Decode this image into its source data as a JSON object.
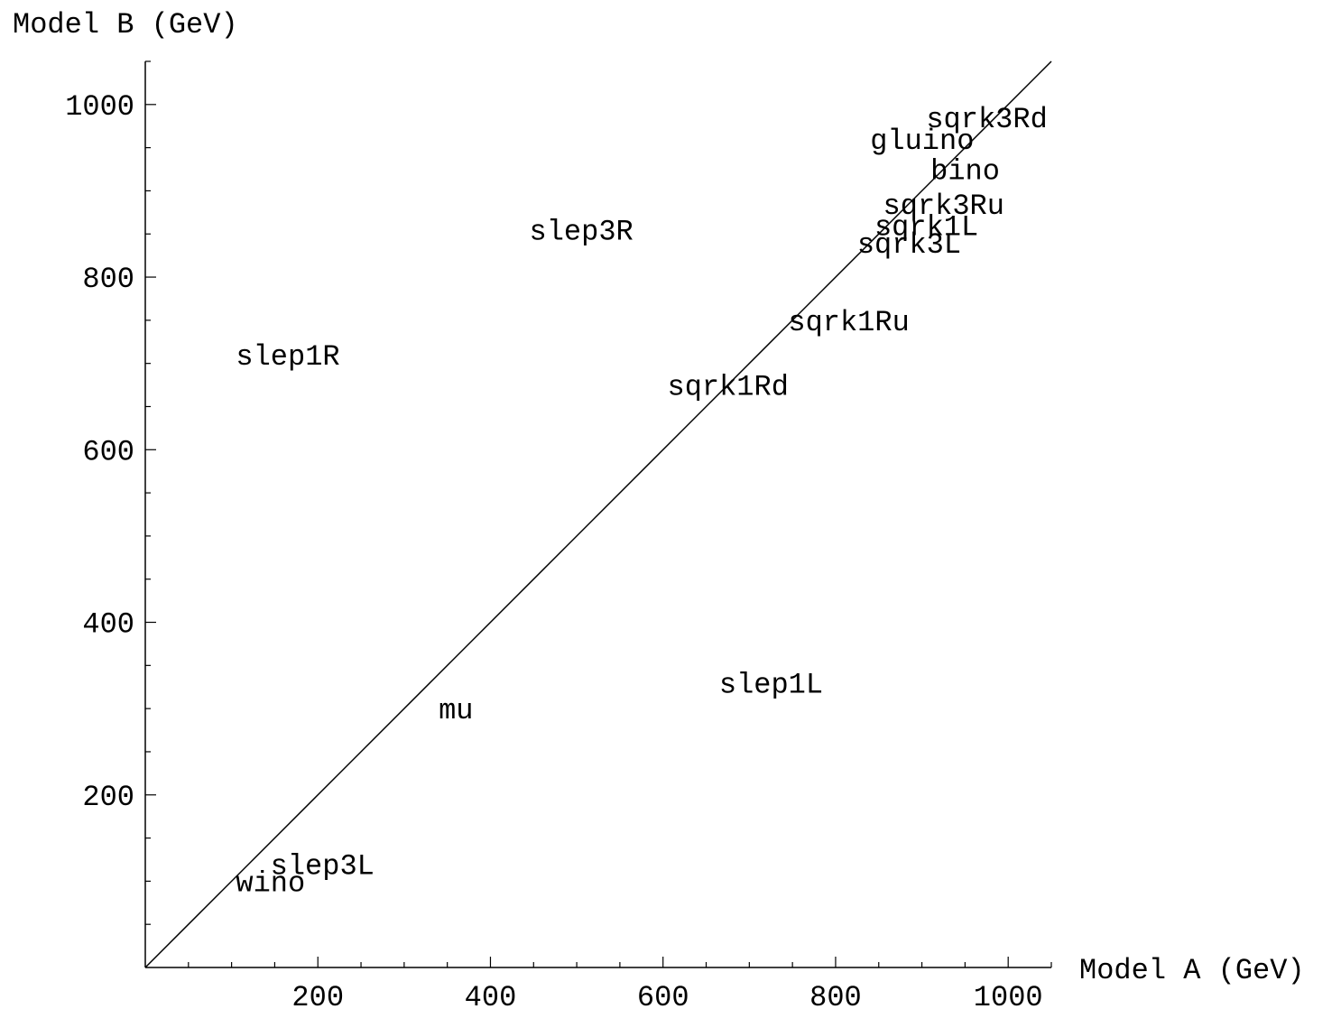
{
  "chart_data": {
    "type": "scatter",
    "title": "",
    "xlabel": "Model A (GeV)",
    "ylabel": "Model B (GeV)",
    "xlim": [
      0,
      1050
    ],
    "ylim": [
      0,
      1050
    ],
    "x_ticks": [
      200,
      400,
      600,
      800,
      1000
    ],
    "y_ticks": [
      200,
      400,
      600,
      800,
      1000
    ],
    "grid": false,
    "reference_line": {
      "from": [
        0,
        0
      ],
      "to": [
        1050,
        1050
      ]
    },
    "points": [
      {
        "label": "sqrk3Rd",
        "x": 905,
        "y": 985
      },
      {
        "label": "gluino",
        "x": 840,
        "y": 960
      },
      {
        "label": "bino",
        "x": 910,
        "y": 925
      },
      {
        "label": "sqrk3Ru",
        "x": 855,
        "y": 885
      },
      {
        "label": "sqrk1L",
        "x": 845,
        "y": 860
      },
      {
        "label": "sqrk3L",
        "x": 825,
        "y": 840
      },
      {
        "label": "slep3R",
        "x": 445,
        "y": 855
      },
      {
        "label": "sqrk1Ru",
        "x": 745,
        "y": 750
      },
      {
        "label": "slep1R",
        "x": 105,
        "y": 710
      },
      {
        "label": "sqrk1Rd",
        "x": 605,
        "y": 675
      },
      {
        "label": "slep1L",
        "x": 665,
        "y": 330
      },
      {
        "label": "mu",
        "x": 340,
        "y": 300
      },
      {
        "label": "slep3L",
        "x": 145,
        "y": 120
      },
      {
        "label": "wino",
        "x": 105,
        "y": 100
      }
    ]
  }
}
